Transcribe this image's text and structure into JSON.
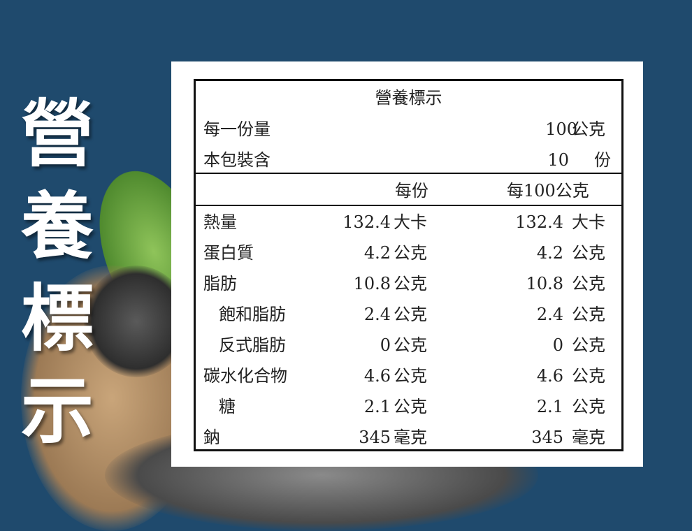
{
  "side_title": [
    "營",
    "養",
    "標",
    "示"
  ],
  "label": {
    "title": "營養標示",
    "serving_size": {
      "label": "每一份量",
      "value": "100",
      "unit": "公克"
    },
    "servings_per_package": {
      "label": "本包裝含",
      "value": "10",
      "unit": "份"
    },
    "columns": [
      "每份",
      "每100公克"
    ],
    "rows": [
      {
        "name": "熱量",
        "per_serving": "132.4",
        "per_serving_unit": "大卡",
        "per_100g": "132.4",
        "per_100g_unit": "大卡"
      },
      {
        "name": "蛋白質",
        "per_serving": "4.2",
        "per_serving_unit": "公克",
        "per_100g": "4.2",
        "per_100g_unit": "公克"
      },
      {
        "name": "脂肪",
        "per_serving": "10.8",
        "per_serving_unit": "公克",
        "per_100g": "10.8",
        "per_100g_unit": "公克"
      },
      {
        "name": "飽和脂肪",
        "per_serving": "2.4",
        "per_serving_unit": "公克",
        "per_100g": "2.4",
        "per_100g_unit": "公克"
      },
      {
        "name": "反式脂肪",
        "per_serving": "0",
        "per_serving_unit": "公克",
        "per_100g": "0",
        "per_100g_unit": "公克"
      },
      {
        "name": "碳水化合物",
        "per_serving": "4.6",
        "per_serving_unit": "公克",
        "per_100g": "4.6",
        "per_100g_unit": "公克"
      },
      {
        "name": "糖",
        "per_serving": "2.1",
        "per_serving_unit": "公克",
        "per_100g": "2.1",
        "per_100g_unit": "公克"
      },
      {
        "name": "鈉",
        "per_serving": "345",
        "per_serving_unit": "毫克",
        "per_100g": "345",
        "per_100g_unit": "毫克"
      }
    ]
  },
  "colors": {
    "background": "#1f4a6d",
    "panel": "#ffffff",
    "text": "#222222"
  }
}
